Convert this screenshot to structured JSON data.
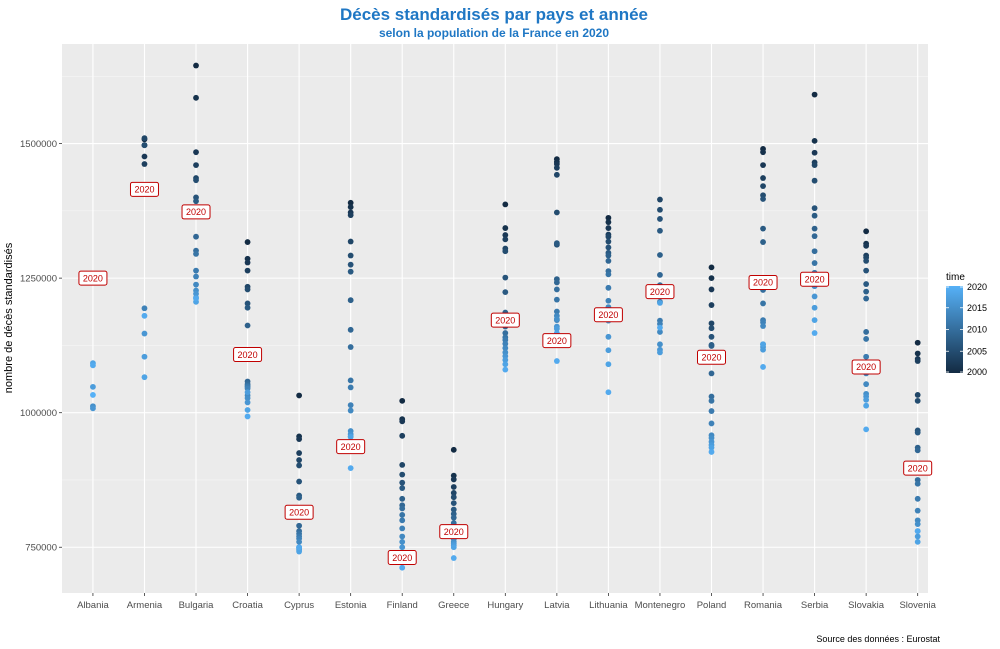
{
  "chart_data": {
    "type": "scatter",
    "title": "Décès standardisés par pays et année",
    "subtitle": "selon la population de la France en 2020",
    "ylabel": "nombre de décès standardisés",
    "xlabel": "",
    "caption": "Source des données : Eurostat",
    "ylim": [
      665000,
      1685000
    ],
    "yticks": [
      750000,
      1000000,
      1250000,
      1500000
    ],
    "ytick_labels": [
      "750000",
      "1000000",
      "1250000",
      "1500000"
    ],
    "grid": true,
    "legend_position": "right",
    "title_color": "#1f77c4",
    "point_color_low": "#132B43",
    "point_color_high": "#56B1F7",
    "annotation_color": "#c00000",
    "legend": {
      "title": "time",
      "min": 2000,
      "max": 2020,
      "ticks": [
        2020,
        2015,
        2010,
        2005,
        2000
      ]
    },
    "annotation_label": "2020",
    "categories": [
      "Albania",
      "Armenia",
      "Bulgaria",
      "Croatia",
      "Cyprus",
      "Estonia",
      "Finland",
      "Greece",
      "Hungary",
      "Latvia",
      "Lithuania",
      "Montenegro",
      "Poland",
      "Romania",
      "Serbia",
      "Slovakia",
      "Slovenia"
    ],
    "series": [
      {
        "category": "Albania",
        "years": [
          2015,
          2016,
          2017,
          2018,
          2019,
          2020
        ],
        "values": [
          1012000,
          1008000,
          1048000,
          1092000,
          1088000,
          1033000
        ],
        "annotation_value": 1250000
      },
      {
        "category": "Armenia",
        "years": [
          2000,
          2001,
          2002,
          2003,
          2004,
          2005,
          2013,
          2016,
          2017,
          2018,
          2019
        ],
        "values": [
          1508000,
          1497000,
          1476000,
          1462000,
          1510000,
          1497000,
          1194000,
          1147000,
          1104000,
          1066000,
          1180000
        ],
        "annotation_value": 1415000
      },
      {
        "category": "Bulgaria",
        "years": [
          2000,
          2001,
          2002,
          2003,
          2004,
          2005,
          2006,
          2007,
          2008,
          2009,
          2010,
          2011,
          2012,
          2013,
          2014,
          2015,
          2016,
          2017,
          2018,
          2019
        ],
        "values": [
          1645000,
          1585000,
          1484000,
          1460000,
          1436000,
          1432000,
          1400000,
          1393000,
          1365000,
          1327000,
          1301000,
          1295000,
          1264000,
          1253000,
          1238000,
          1227000,
          1221000,
          1214000,
          1206000,
          1212000
        ],
        "annotation_value": 1373000
      },
      {
        "category": "Croatia",
        "years": [
          2000,
          2001,
          2002,
          2003,
          2004,
          2005,
          2006,
          2007,
          2008,
          2009,
          2010,
          2011,
          2012,
          2013,
          2014,
          2015,
          2016,
          2017,
          2018,
          2019
        ],
        "values": [
          1317000,
          1286000,
          1279000,
          1264000,
          1234000,
          1229000,
          1203000,
          1195000,
          1162000,
          1058000,
          1053000,
          1050000,
          1048000,
          1045000,
          1032000,
          1027000,
          1019000,
          1038000,
          1005000,
          993000
        ],
        "annotation_value": 1108000
      },
      {
        "category": "Cyprus",
        "years": [
          2000,
          2001,
          2002,
          2003,
          2004,
          2005,
          2006,
          2007,
          2008,
          2009,
          2010,
          2011,
          2012,
          2013,
          2014,
          2015,
          2016,
          2017,
          2018,
          2019
        ],
        "values": [
          1032000,
          956000,
          951000,
          925000,
          912000,
          902000,
          872000,
          846000,
          842000,
          790000,
          780000,
          775000,
          770000,
          766000,
          760000,
          750000,
          748000,
          745000,
          742000,
          750000
        ],
        "annotation_value": 815000
      },
      {
        "category": "Estonia",
        "years": [
          2000,
          2001,
          2002,
          2003,
          2004,
          2005,
          2006,
          2007,
          2008,
          2009,
          2010,
          2011,
          2012,
          2013,
          2014,
          2015,
          2016,
          2017,
          2018,
          2019
        ],
        "values": [
          1390000,
          1382000,
          1372000,
          1367000,
          1318000,
          1292000,
          1275000,
          1262000,
          1209000,
          1154000,
          1122000,
          1060000,
          1047000,
          1014000,
          1004000,
          966000,
          960000,
          956000,
          955000,
          897000
        ],
        "annotation_value": 937000
      },
      {
        "category": "Finland",
        "years": [
          2000,
          2001,
          2002,
          2003,
          2004,
          2005,
          2006,
          2007,
          2008,
          2009,
          2010,
          2011,
          2012,
          2013,
          2014,
          2015,
          2016,
          2017,
          2018,
          2019
        ],
        "values": [
          1022000,
          988000,
          984000,
          957000,
          903000,
          885000,
          870000,
          860000,
          840000,
          828000,
          822000,
          810000,
          800000,
          785000,
          770000,
          760000,
          750000,
          740000,
          722000,
          712000
        ],
        "annotation_value": 731000
      },
      {
        "category": "Greece",
        "years": [
          2000,
          2001,
          2002,
          2003,
          2004,
          2005,
          2006,
          2007,
          2008,
          2009,
          2010,
          2011,
          2012,
          2013,
          2014,
          2015,
          2016,
          2017,
          2018,
          2019
        ],
        "values": [
          931000,
          883000,
          876000,
          862000,
          851000,
          843000,
          832000,
          820000,
          812000,
          805000,
          795000,
          785000,
          776000,
          770000,
          765000,
          760000,
          757000,
          754000,
          750000,
          730000
        ],
        "annotation_value": 779000
      },
      {
        "category": "Hungary",
        "years": [
          2000,
          2001,
          2002,
          2003,
          2004,
          2005,
          2006,
          2007,
          2008,
          2009,
          2010,
          2011,
          2012,
          2013,
          2014,
          2015,
          2016,
          2017,
          2018,
          2019
        ],
        "values": [
          1387000,
          1343000,
          1330000,
          1322000,
          1305000,
          1300000,
          1251000,
          1224000,
          1186000,
          1160000,
          1148000,
          1140000,
          1135000,
          1128000,
          1120000,
          1112000,
          1105000,
          1098000,
          1090000,
          1080000
        ],
        "annotation_value": 1172000
      },
      {
        "category": "Latvia",
        "years": [
          2000,
          2001,
          2002,
          2003,
          2004,
          2005,
          2006,
          2007,
          2008,
          2009,
          2010,
          2011,
          2012,
          2013,
          2014,
          2015,
          2016,
          2017,
          2018,
          2019
        ],
        "values": [
          1471000,
          1466000,
          1462000,
          1455000,
          1442000,
          1372000,
          1312000,
          1315000,
          1248000,
          1242000,
          1229000,
          1210000,
          1188000,
          1172000,
          1180000,
          1174000,
          1160000,
          1156000,
          1148000,
          1096000
        ],
        "annotation_value": 1134000
      },
      {
        "category": "Lithuania",
        "years": [
          2000,
          2001,
          2002,
          2003,
          2004,
          2005,
          2006,
          2007,
          2008,
          2009,
          2010,
          2011,
          2012,
          2013,
          2014,
          2015,
          2016,
          2017,
          2018,
          2019
        ],
        "values": [
          1362000,
          1354000,
          1343000,
          1331000,
          1327000,
          1318000,
          1307000,
          1297000,
          1292000,
          1282000,
          1263000,
          1257000,
          1232000,
          1208000,
          1196000,
          1171000,
          1141000,
          1116000,
          1090000,
          1038000
        ],
        "annotation_value": 1182000
      },
      {
        "category": "Montenegro",
        "years": [
          2004,
          2005,
          2006,
          2007,
          2008,
          2009,
          2010,
          2011,
          2012,
          2013,
          2014,
          2015,
          2016,
          2017,
          2018,
          2019
        ],
        "values": [
          1396000,
          1377000,
          1360000,
          1338000,
          1293000,
          1256000,
          1237000,
          1206000,
          1171000,
          1165000,
          1150000,
          1127000,
          1117000,
          1112000,
          1204000,
          1158000
        ],
        "annotation_value": 1225000
      },
      {
        "category": "Poland",
        "years": [
          2000,
          2001,
          2002,
          2003,
          2004,
          2005,
          2006,
          2007,
          2008,
          2009,
          2010,
          2011,
          2012,
          2013,
          2014,
          2015,
          2016,
          2017,
          2018,
          2019
        ],
        "values": [
          1270000,
          1250000,
          1229000,
          1200000,
          1166000,
          1157000,
          1141000,
          1126000,
          1124000,
          1073000,
          1030000,
          1022000,
          1003000,
          980000,
          958000,
          953000,
          946000,
          940000,
          935000,
          927000
        ],
        "annotation_value": 1103000
      },
      {
        "category": "Romania",
        "years": [
          2000,
          2001,
          2002,
          2003,
          2004,
          2005,
          2006,
          2007,
          2008,
          2009,
          2010,
          2011,
          2012,
          2013,
          2014,
          2015,
          2016,
          2017,
          2018,
          2019
        ],
        "values": [
          1490000,
          1484000,
          1460000,
          1436000,
          1421000,
          1404000,
          1397000,
          1342000,
          1317000,
          1247000,
          1228000,
          1203000,
          1172000,
          1168000,
          1161000,
          1127000,
          1122000,
          1117000,
          1127000,
          1085000
        ],
        "annotation_value": 1242000
      },
      {
        "category": "Serbia",
        "years": [
          2000,
          2001,
          2002,
          2003,
          2004,
          2005,
          2006,
          2007,
          2008,
          2009,
          2010,
          2011,
          2012,
          2013,
          2014,
          2015,
          2016,
          2017,
          2018,
          2019
        ],
        "values": [
          1591000,
          1505000,
          1483000,
          1465000,
          1460000,
          1431000,
          1380000,
          1366000,
          1342000,
          1328000,
          1300000,
          1278000,
          1260000,
          1250000,
          1240000,
          1235000,
          1216000,
          1195000,
          1172000,
          1148000
        ],
        "annotation_value": 1248000
      },
      {
        "category": "Slovakia",
        "years": [
          2000,
          2001,
          2002,
          2003,
          2004,
          2005,
          2006,
          2007,
          2008,
          2009,
          2010,
          2011,
          2012,
          2013,
          2014,
          2015,
          2016,
          2017,
          2018,
          2019
        ],
        "values": [
          1337000,
          1314000,
          1310000,
          1292000,
          1288000,
          1282000,
          1264000,
          1239000,
          1225000,
          1212000,
          1150000,
          1137000,
          1104000,
          1073000,
          1053000,
          1035000,
          1030000,
          1024000,
          1013000,
          969000
        ],
        "annotation_value": 1085000
      },
      {
        "category": "Slovenia",
        "years": [
          2000,
          2001,
          2002,
          2003,
          2004,
          2005,
          2006,
          2007,
          2008,
          2009,
          2010,
          2011,
          2012,
          2013,
          2014,
          2015,
          2016,
          2017,
          2018,
          2019
        ],
        "values": [
          1130000,
          1110000,
          1100000,
          1096000,
          1033000,
          1022000,
          967000,
          963000,
          935000,
          930000,
          875000,
          868000,
          840000,
          818000,
          800000,
          793000,
          780000,
          770000,
          760000,
          780000
        ],
        "annotation_value": 897000
      }
    ]
  }
}
